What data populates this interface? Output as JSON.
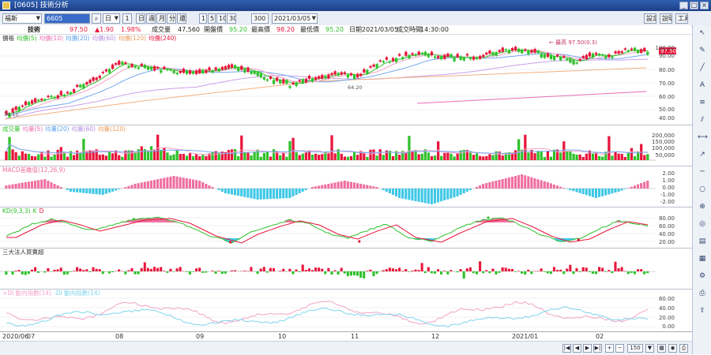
{
  "window": {
    "title": "[0605] 技術分析",
    "buttons": [
      "_",
      "□",
      "×"
    ]
  },
  "toolbar": {
    "stock_select": "福斯",
    "code_input": "6605",
    "search_icon": "search-icon",
    "period": "日",
    "step": "1",
    "period_buttons": [
      "日",
      "週",
      "月",
      "分",
      "還"
    ],
    "ratio_buttons": [
      "1",
      "5",
      "10",
      "30"
    ],
    "count": "300",
    "date": "2021/03/05",
    "right_buttons": [
      "設定",
      "說明",
      "工具"
    ]
  },
  "info": {
    "tab": "技術",
    "price": "97.50",
    "change": "▲1.90",
    "change_pct": "1.98%",
    "volume_label": "成交量",
    "volume": "47,560",
    "open_label": "開盤價",
    "open": "95.20",
    "high_label": "最高價",
    "high": "98.20",
    "low_label": "最低價",
    "low": "95.20",
    "date_label": "日期",
    "date": "2021/03/05",
    "time_label": "成交時間",
    "time": "14:30:00"
  },
  "colors": {
    "up": "#e8163c",
    "down": "#2fc12a",
    "ma5": "#2fc12a",
    "ma10": "#f2a3c8",
    "ma20": "#76a8f0",
    "ma60": "#c9a0e8",
    "ma120": "#f4b080",
    "ma240": "#e86fb0",
    "macd_pos": "#ef6f9f",
    "macd_neg": "#3ec7e6",
    "k": "#2fc12a",
    "d": "#e8163c",
    "dmi_plus": "#f2a3c8",
    "dmi_minus": "#7fd3ea"
  },
  "panels": {
    "price": {
      "legend": [
        {
          "text": "價格",
          "color": "#333333"
        },
        {
          "text": "均價(5)",
          "color": "#2fc12a"
        },
        {
          "text": "均價(10)",
          "color": "#e86fb0"
        },
        {
          "text": "均價(20)",
          "color": "#5aa0ee"
        },
        {
          "text": "均價(60)",
          "color": "#b58ae0"
        },
        {
          "text": "均價(120)",
          "color": "#e89a55"
        },
        {
          "text": "均價(240)",
          "color": "#e8163c"
        }
      ],
      "high_marker": "← 最高 97.50(0.3)",
      "price_tag": "97.50",
      "scale": [
        "100.00",
        "90.00",
        "80.00",
        "70.00",
        "60.00",
        "50.00",
        "40.00"
      ],
      "low_marker": "34.10",
      "mid_marker": "64.20"
    },
    "volume": {
      "legend": [
        {
          "text": "成交量",
          "color": "#2fc12a"
        },
        {
          "text": "均量(5)",
          "color": "#e86fb0"
        },
        {
          "text": "均量(20)",
          "color": "#5aa0ee"
        },
        {
          "text": "均量(60)",
          "color": "#b58ae0"
        },
        {
          "text": "均量(120)",
          "color": "#e89a55"
        }
      ],
      "scale": [
        "200,000",
        "150,000",
        "100,000",
        "50,000"
      ]
    },
    "macd": {
      "legend": [
        {
          "text": "MACD差離值(12,26,9)",
          "color": "#ef6f9f"
        }
      ],
      "scale": [
        "2.00",
        "1.00",
        "0.00",
        "-1.00",
        "-2.00"
      ]
    },
    "kd": {
      "legend": [
        {
          "text": "KD(9,3,3)",
          "color": "#2fc12a"
        },
        {
          "text": "K",
          "color": "#2fc12a"
        },
        {
          "text": "D",
          "color": "#e8163c"
        }
      ],
      "scale": [
        "80.00",
        "60.00",
        "40.00",
        "20.00"
      ]
    },
    "inst": {
      "legend": [
        {
          "text": "三大法人買賣超",
          "color": "#333333"
        }
      ]
    },
    "dmi": {
      "legend": [
        {
          "text": "+DI 動向指數(14)",
          "color": "#f2a3c8"
        },
        {
          "text": "-DI 動向指數(14)",
          "color": "#7fd3ea"
        }
      ],
      "scale": [
        "60.00",
        "40.00",
        "20.00",
        "0.00"
      ]
    }
  },
  "xaxis": {
    "labels": [
      "2020/06",
      "07",
      "08",
      "09",
      "10",
      "11",
      "12",
      "2021/01",
      "02"
    ]
  },
  "statusbar": {
    "zoom": "150"
  },
  "sidebar": {
    "icons": [
      "cursor-icon",
      "pen-icon",
      "line-icon",
      "text-icon",
      "fib-icon",
      "channel-icon",
      "ruler-icon",
      "trend-icon",
      "hline-icon",
      "circle-icon",
      "magnet-icon",
      "eye-icon",
      "layout-icon",
      "grid-icon",
      "settings-icon",
      "printer-icon",
      "export-icon"
    ]
  }
}
